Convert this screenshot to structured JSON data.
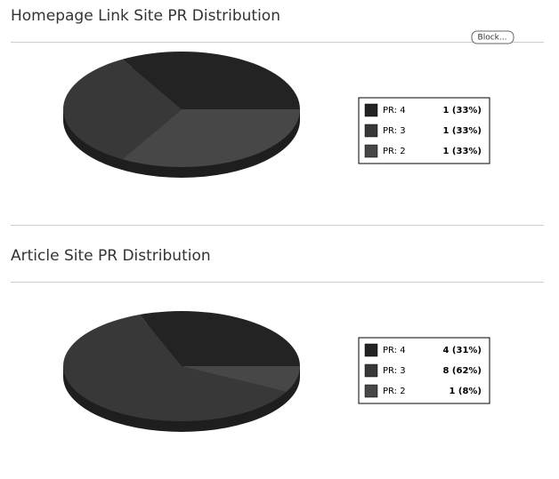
{
  "chart_data": [
    {
      "type": "pie",
      "title": "Homepage Link Site PR Distribution",
      "categories": [
        "PR: 4",
        "PR: 3",
        "PR: 2"
      ],
      "values": [
        1,
        1,
        1
      ],
      "value_labels": [
        "1 (33%)",
        "1 (33%)",
        "1 (33%)"
      ],
      "colors": [
        "#232323",
        "#383838",
        "#474747"
      ]
    },
    {
      "type": "pie",
      "title": "Article Site PR Distribution",
      "categories": [
        "PR: 4",
        "PR: 3",
        "PR: 2"
      ],
      "values": [
        4,
        8,
        1
      ],
      "value_labels": [
        "4 (31%)",
        "8 (62%)",
        "1 (8%)"
      ],
      "colors": [
        "#232323",
        "#383838",
        "#474747"
      ]
    }
  ],
  "block_button": "Block..."
}
